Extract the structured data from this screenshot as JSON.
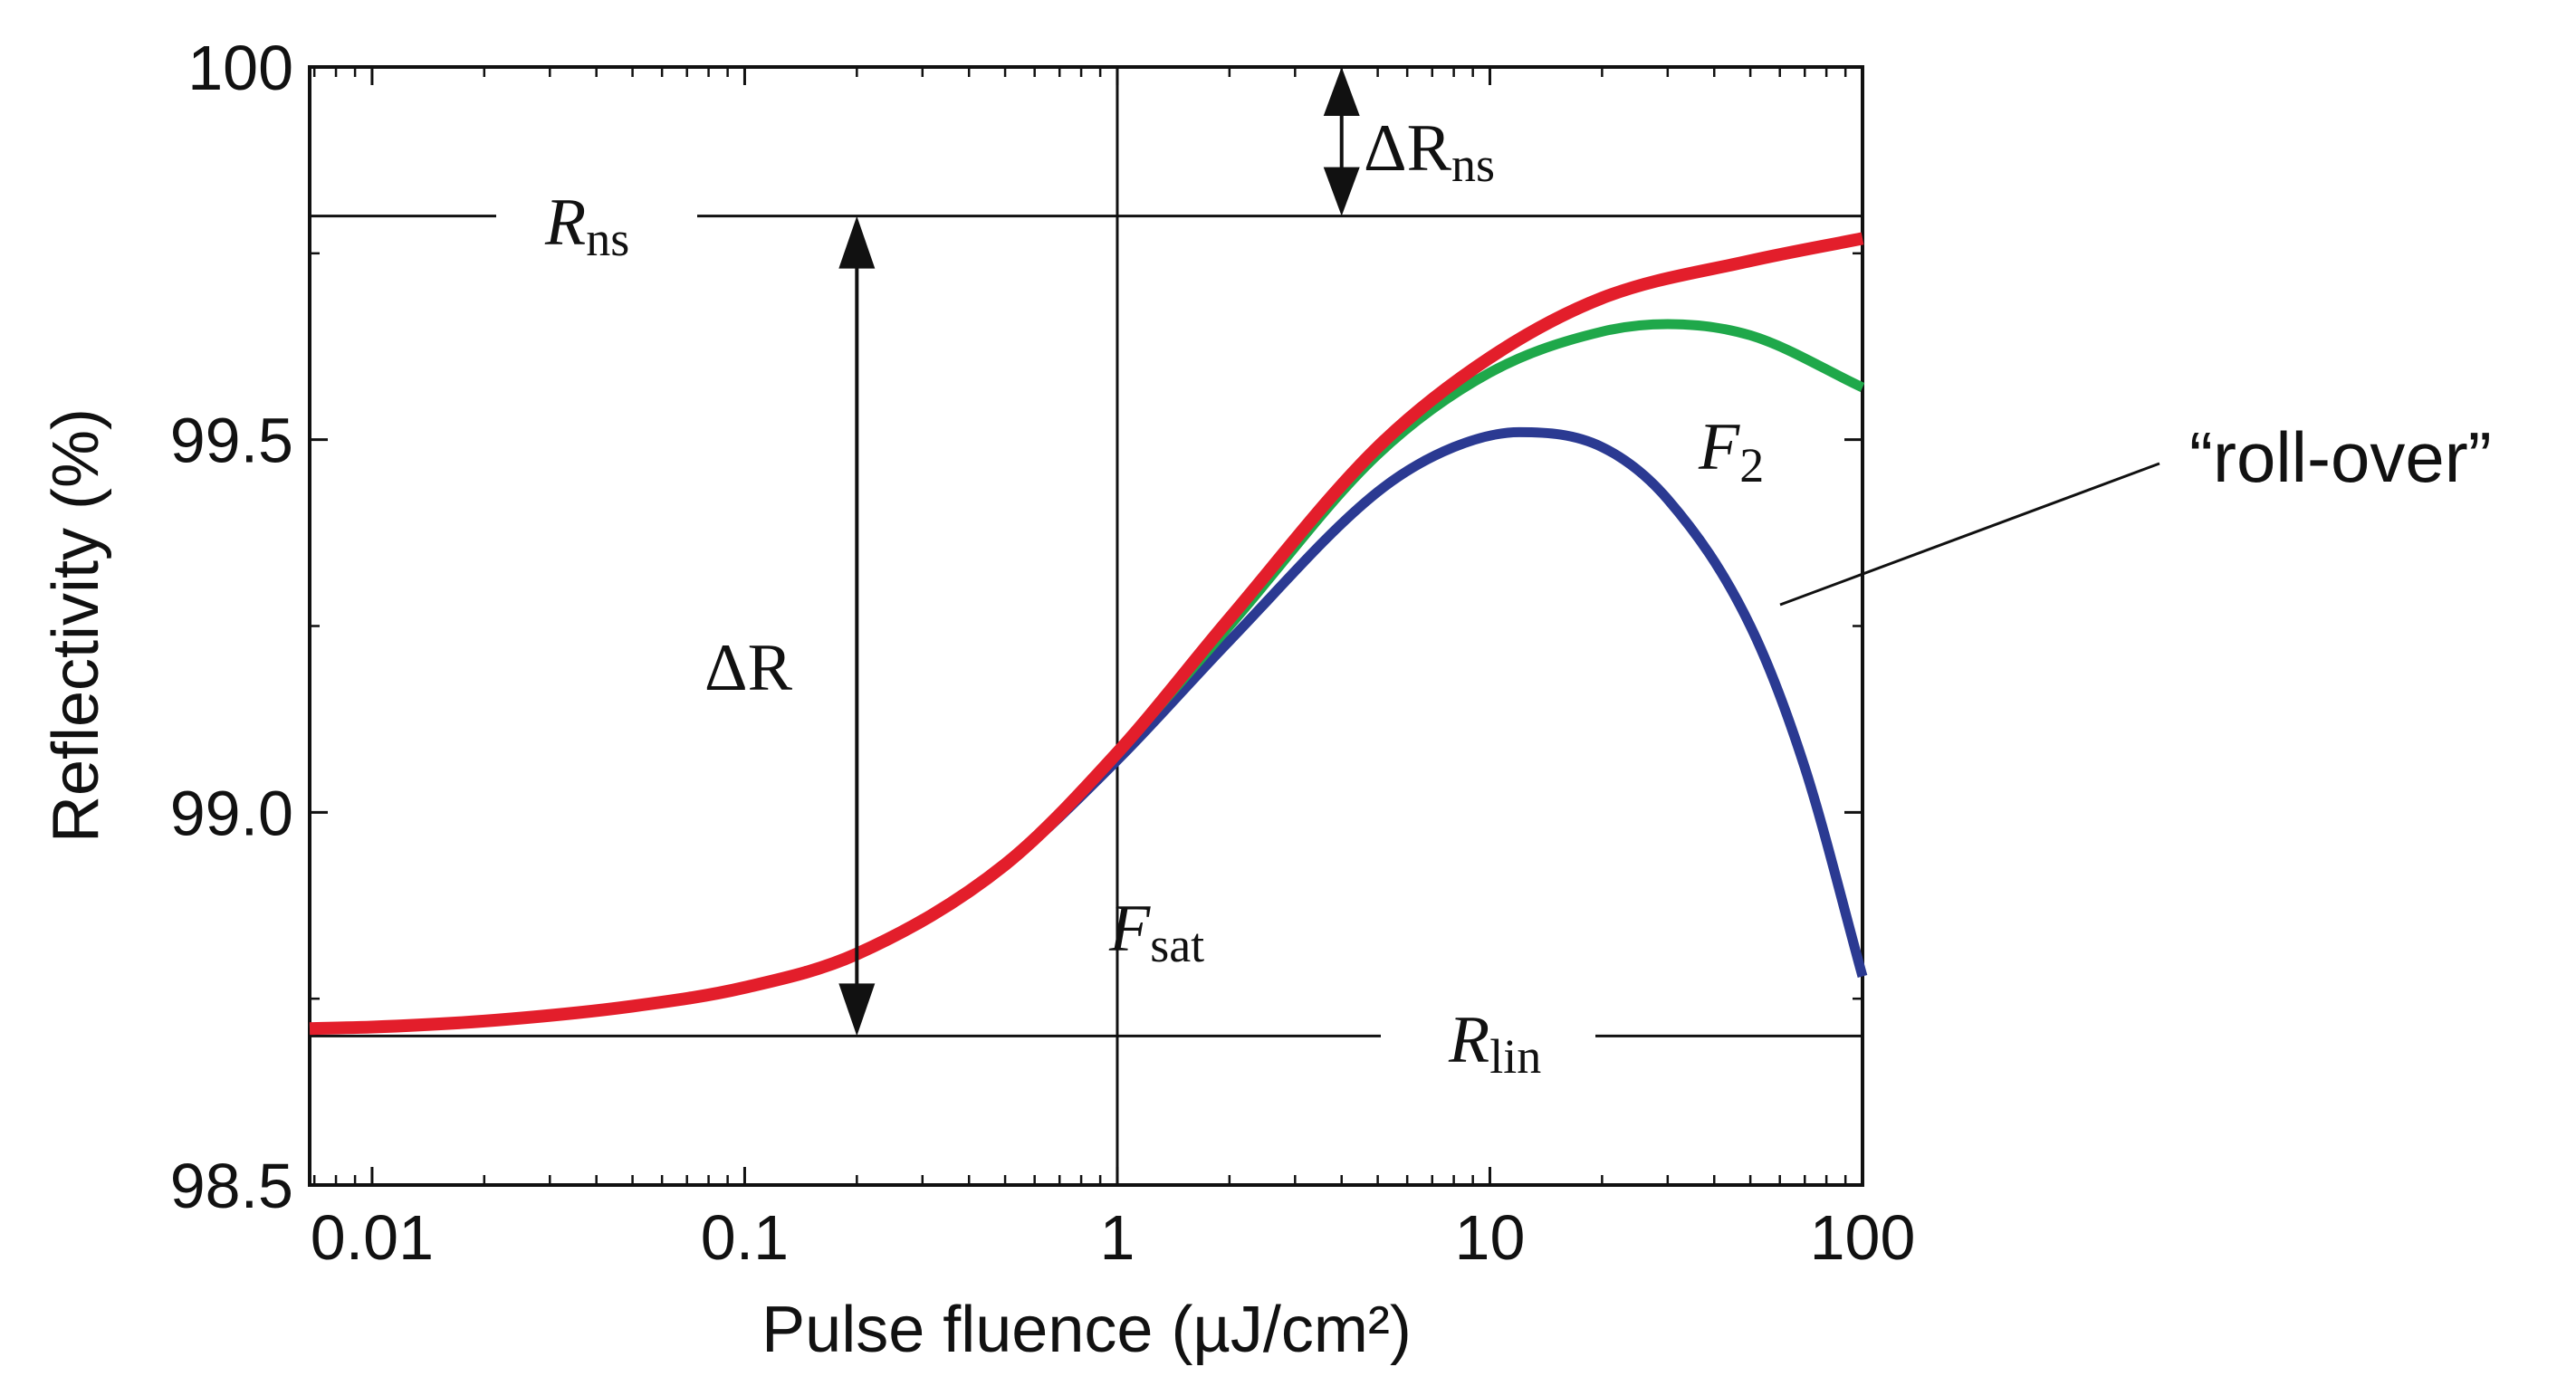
{
  "chart_data": {
    "type": "line",
    "title": "",
    "xlabel": "Pulse fluence (µJ/cm²)",
    "ylabel": "Reflectivity (%)",
    "xscale": "log",
    "xlim": [
      0.0068,
      100
    ],
    "ylim": [
      98.5,
      100
    ],
    "x_ticks": [
      0.01,
      0.1,
      1,
      10,
      100
    ],
    "x_tick_labels": [
      "0.01",
      "0.1",
      "1",
      "10",
      "100"
    ],
    "y_ticks": [
      98.5,
      99.0,
      99.5,
      100
    ],
    "y_tick_labels": [
      "98.5",
      "99.0",
      "99.5",
      "100"
    ],
    "grid": false,
    "colors": {
      "red": "#e31e2b",
      "green": "#1fa84a",
      "blue": "#2b3a92",
      "axis": "#111111"
    },
    "series": [
      {
        "name": "red",
        "color": "#e31e2b",
        "x": [
          0.0068,
          0.01,
          0.02,
          0.05,
          0.1,
          0.2,
          0.5,
          1,
          2,
          5,
          10,
          20,
          50,
          100
        ],
        "y": [
          98.71,
          98.712,
          98.72,
          98.74,
          98.765,
          98.81,
          98.93,
          99.08,
          99.26,
          99.49,
          99.61,
          99.69,
          99.74,
          99.77
        ]
      },
      {
        "name": "green",
        "color": "#1fa84a",
        "x": [
          0.0068,
          0.01,
          0.02,
          0.05,
          0.1,
          0.2,
          0.5,
          1,
          2,
          5,
          10,
          20,
          30,
          50,
          100
        ],
        "y": [
          98.71,
          98.712,
          98.72,
          98.74,
          98.765,
          98.81,
          98.93,
          99.08,
          99.25,
          99.48,
          99.59,
          99.645,
          99.655,
          99.64,
          99.57
        ]
      },
      {
        "name": "blue",
        "color": "#2b3a92",
        "x": [
          0.0068,
          0.01,
          0.02,
          0.05,
          0.1,
          0.2,
          0.5,
          1,
          2,
          5,
          8,
          12,
          20,
          30,
          50,
          70,
          100
        ],
        "y": [
          98.71,
          98.712,
          98.72,
          98.74,
          98.765,
          98.81,
          98.93,
          99.07,
          99.23,
          99.43,
          99.49,
          99.51,
          99.49,
          99.42,
          99.25,
          99.06,
          98.78
        ]
      }
    ],
    "reference_lines": [
      {
        "name": "R_ns",
        "axis": "y",
        "value": 99.8,
        "label": "R",
        "sub": "ns"
      },
      {
        "name": "R_lin",
        "axis": "y",
        "value": 98.7,
        "label": "R",
        "sub": "lin"
      },
      {
        "name": "F_sat",
        "axis": "x",
        "value": 1,
        "label": "F",
        "sub": "sat"
      }
    ],
    "arrows": [
      {
        "name": "delta-r",
        "x": 0.2,
        "y_from": 98.7,
        "y_to": 99.8,
        "label": "ΔR"
      },
      {
        "name": "delta-r-ns",
        "x": 4,
        "y_from": 99.8,
        "y_to": 100,
        "label": "ΔR",
        "sub": "ns"
      }
    ],
    "annotations": [
      {
        "name": "f2",
        "text": "F",
        "sub": "2",
        "x": 30,
        "y": 99.45
      },
      {
        "name": "roll-over",
        "text": "“roll-over”",
        "pointer_to": [
          70,
          99.32
        ]
      }
    ]
  }
}
